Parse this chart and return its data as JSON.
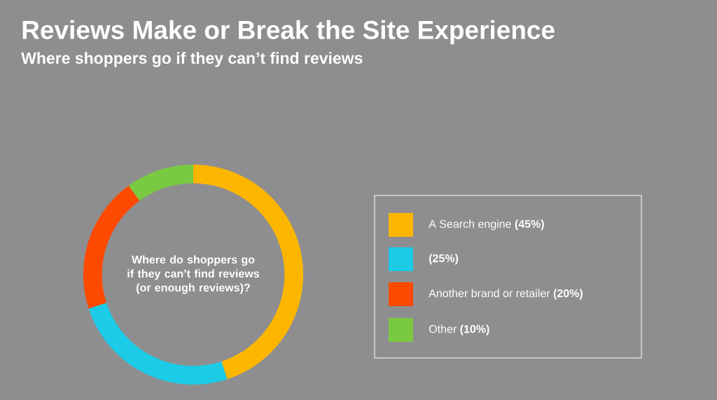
{
  "chart_data": {
    "type": "donut",
    "title": "Reviews Make or Break the Site Experience",
    "subtitle": "Where shoppers go if they can’t find reviews",
    "categories": [
      "A Search engine **(45%)**",
      "**(25%)**",
      "Another brand or retailer **(20%)**",
      "Other **(10%)**"
    ],
    "values": [
      45,
      25,
      20,
      10
    ],
    "colors": [
      "#fdb600",
      "#1ccbe6",
      "#fe4a00",
      "#7ac943"
    ],
    "annotations": [
      "Where do shoppers go if they can’t find reviews (or enough reviews)?"
    ],
    "legend": "right"
  }
}
